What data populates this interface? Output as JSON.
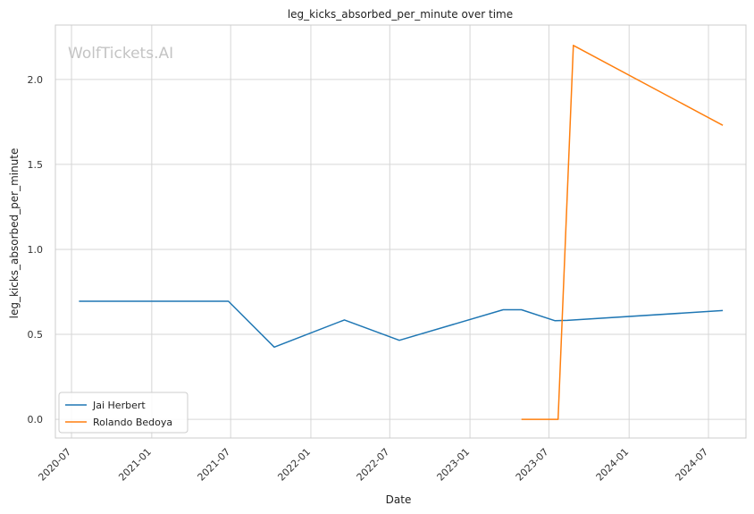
{
  "watermark": "WolfTickets.AI",
  "chart_data": {
    "type": "line",
    "title": "leg_kicks_absorbed_per_minute over time",
    "xlabel": "Date",
    "ylabel": "leg_kicks_absorbed_per_minute",
    "xlim": [
      "2020-05-25",
      "2024-09-25"
    ],
    "ylim": [
      -0.11,
      2.32
    ],
    "x_ticks": [
      "2020-07",
      "2021-01",
      "2021-07",
      "2022-01",
      "2022-07",
      "2023-01",
      "2023-07",
      "2024-01",
      "2024-07"
    ],
    "y_ticks": [
      0.0,
      0.5,
      1.0,
      1.5,
      2.0
    ],
    "y_tick_labels": [
      "0.0",
      "0.5",
      "1.0",
      "1.5",
      "2.0"
    ],
    "grid": true,
    "legend_position": "bottom-left",
    "series": [
      {
        "name": "Jai Herbert",
        "color": "#1f77b4",
        "points": [
          {
            "x": "2020-07-18",
            "y": 0.695
          },
          {
            "x": "2021-06-26",
            "y": 0.695
          },
          {
            "x": "2021-10-09",
            "y": 0.425
          },
          {
            "x": "2022-03-19",
            "y": 0.585
          },
          {
            "x": "2022-07-23",
            "y": 0.465
          },
          {
            "x": "2023-03-18",
            "y": 0.645
          },
          {
            "x": "2023-04-29",
            "y": 0.645
          },
          {
            "x": "2023-07-15",
            "y": 0.58
          },
          {
            "x": "2023-08-12",
            "y": 0.582
          },
          {
            "x": "2024-08-03",
            "y": 0.64
          }
        ]
      },
      {
        "name": "Rolando Bedoya",
        "color": "#ff7f0e",
        "points": [
          {
            "x": "2023-04-29",
            "y": 0.0
          },
          {
            "x": "2023-07-22",
            "y": 0.0
          },
          {
            "x": "2023-08-26",
            "y": 2.2
          },
          {
            "x": "2024-08-03",
            "y": 1.73
          }
        ]
      }
    ]
  }
}
